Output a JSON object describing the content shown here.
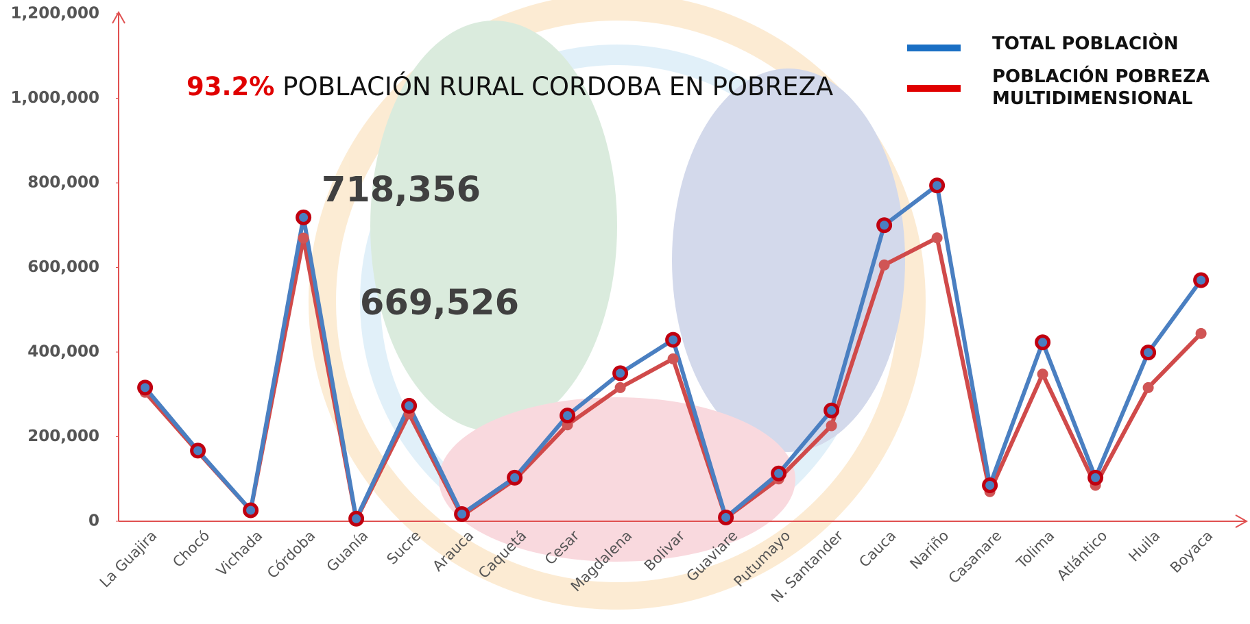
{
  "chart_data": {
    "type": "line",
    "title_parts": [
      {
        "text": "93.2%",
        "color": "#e00000"
      },
      {
        "text": " POBLACIÓN  RURAL CORDOBA EN POBREZA",
        "color": "#111111"
      }
    ],
    "categories": [
      "La Guajira",
      "Chocó",
      "Vichada",
      "Córdoba",
      "Guanía",
      "Sucre",
      "Arauca",
      "Caquetá",
      "Cesar",
      "Magdalena",
      "Bolivar",
      "Guaviare",
      "Putumayo",
      "N. Santander",
      "Cauca",
      "Nariño",
      "Casanare",
      "Tolima",
      "Atlántico",
      "Huila",
      "Boyaca"
    ],
    "series": [
      {
        "name": "TOTAL POBLACIÒN",
        "color": "#4a7fc1",
        "marker_color": "#c00010",
        "values": [
          316000,
          167000,
          26000,
          718356,
          6000,
          273000,
          17000,
          103000,
          250000,
          350000,
          429000,
          9000,
          113000,
          262000,
          700000,
          794000,
          85000,
          423000,
          103000,
          399000,
          570000
        ],
        "value_labels": [
          null,
          null,
          null,
          "718,356",
          null,
          null,
          null,
          null,
          null,
          null,
          null,
          null,
          null,
          null,
          null,
          null,
          null,
          null,
          null,
          null,
          null
        ]
      },
      {
        "name": "POBLACIÓN POBREZA MULTIDIMENSIONAL",
        "color": "#d04a4a",
        "marker_color": "#d05555",
        "values": [
          305000,
          164000,
          26000,
          669526,
          4000,
          254000,
          13000,
          98000,
          228000,
          316000,
          384000,
          8000,
          100000,
          226000,
          606000,
          670000,
          70000,
          348000,
          85000,
          316000,
          444000
        ],
        "value_labels": [
          null,
          null,
          null,
          "669,526",
          null,
          null,
          null,
          null,
          null,
          null,
          null,
          null,
          null,
          null,
          null,
          null,
          null,
          null,
          null,
          null,
          null
        ]
      }
    ],
    "legend_colors": [
      "#1a6fc4",
      "#e00000"
    ],
    "ylim": [
      0,
      1200000
    ],
    "yticks": [
      0,
      {
        "value": 200000,
        "label": "200,000"
      },
      {
        "value": 400000,
        "label": "400,000"
      },
      {
        "value": 600000,
        "label": "600,000"
      },
      {
        "value": 800000,
        "label": "800,000"
      },
      {
        "value": 1000000,
        "label": "1,000,000"
      },
      {
        "value": 1200000,
        "label": "1,200,000"
      }
    ],
    "grid": false
  }
}
